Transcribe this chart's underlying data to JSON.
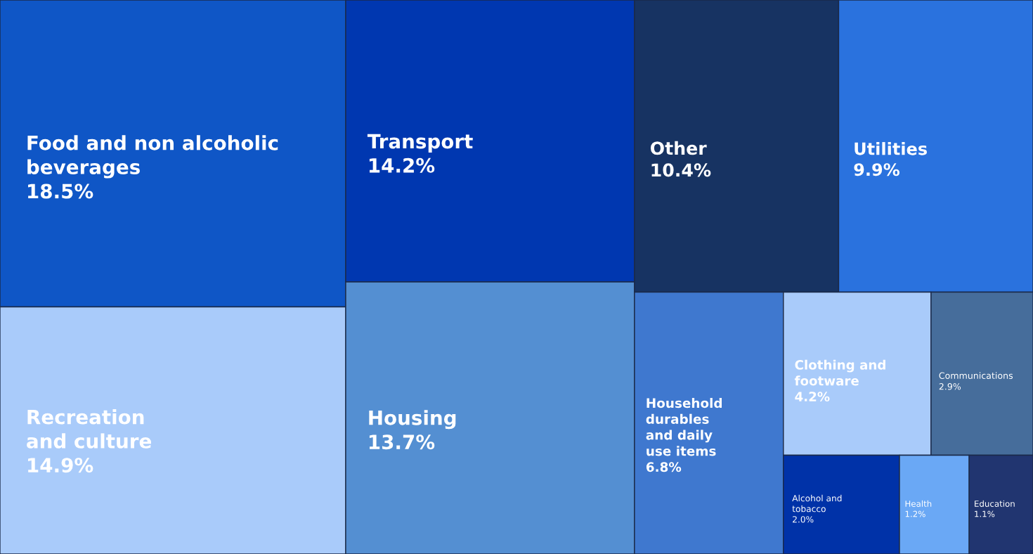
{
  "chart_data": {
    "type": "other",
    "categories": [
      "Food and non alcoholic\nbeverages",
      "Recreation\nand culture",
      "Transport",
      "Housing",
      "Other",
      "Utilities",
      "Household\ndurables\nand daily\nuse items",
      "Clothing and\nfootware",
      "Communications",
      "Alcohol and\ntobacco",
      "Health",
      "Education"
    ],
    "values": [
      18.5,
      14.9,
      14.2,
      13.7,
      10.4,
      9.9,
      6.8,
      4.2,
      2.9,
      2.0,
      1.2,
      1.1
    ],
    "value_labels": [
      "18.5%",
      "14.9%",
      "14.2%",
      "13.7%",
      "10.4%",
      "9.9%",
      "6.8%",
      "4.2%",
      "2.9%",
      "2.0%",
      "1.2%",
      "1.1%"
    ],
    "colors": [
      "#0f56c6",
      "#a9cbfa",
      "#0037b0",
      "#548fd2",
      "#173362",
      "#2a72de",
      "#3f78cf",
      "#a9cbfa",
      "#466d9b",
      "#0032a8",
      "#6aa8f5",
      "#213570"
    ]
  }
}
